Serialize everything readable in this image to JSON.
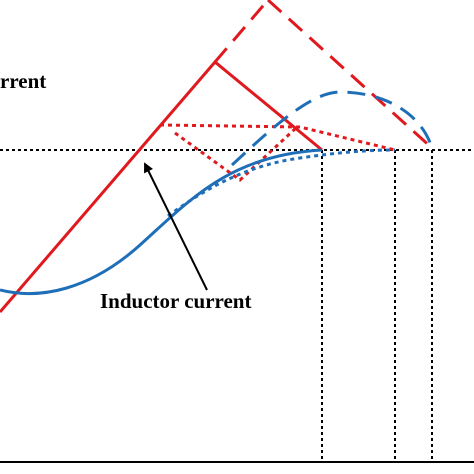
{
  "labels": {
    "top_left": "rrent",
    "curve": "Inductor current"
  }
}
